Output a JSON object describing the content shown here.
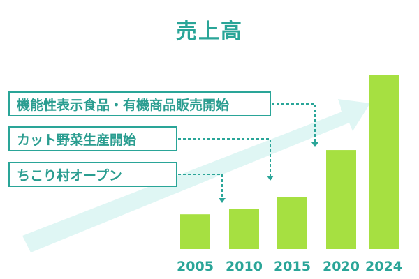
{
  "chart_data": {
    "type": "bar",
    "title": "売上高",
    "categories": [
      "2005",
      "2010",
      "2015",
      "2020",
      "2024"
    ],
    "values": [
      20,
      23,
      30,
      57,
      100
    ],
    "ylim": [
      0,
      100
    ],
    "grid": false,
    "annotations": [
      {
        "text": "機能性表示食品・有機商品販売開始",
        "points_to": "2020"
      },
      {
        "text": "カット野菜生産開始",
        "points_to": "2015"
      },
      {
        "text": "ちこり村オープン",
        "points_to": "2010"
      }
    ],
    "colors": {
      "bar": "#a6e041",
      "text": "#2aa598",
      "trend_arrow": "#dff6f4"
    }
  }
}
